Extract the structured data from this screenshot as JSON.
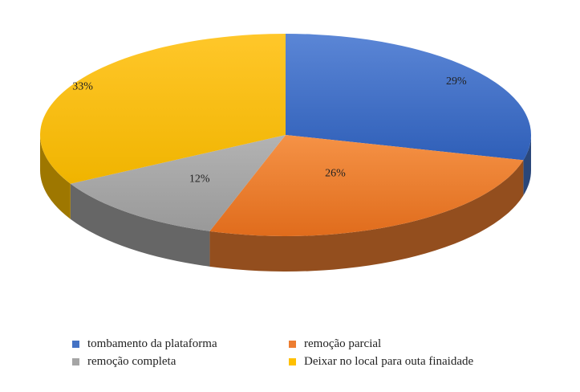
{
  "chart_data": {
    "type": "pie",
    "style": "3d",
    "title": "",
    "categories": [
      "tombamento da plataforma",
      "remoção parcial",
      "remoção completa",
      "Deixar no local para outa finaidade"
    ],
    "values": [
      29,
      26,
      12,
      33
    ],
    "value_labels": [
      "29%",
      "26%",
      "12%",
      "33%"
    ],
    "colors": [
      "#4472C4",
      "#ED7D31",
      "#A5A5A5",
      "#FFC000"
    ],
    "legend_position": "bottom"
  }
}
